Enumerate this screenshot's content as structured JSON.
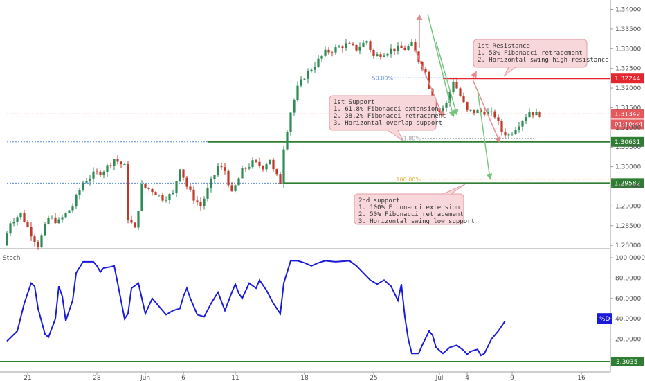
{
  "chart_data": [
    {
      "type": "candlestick",
      "y_axis_ticks": [
        "1.34000",
        "1.33500",
        "1.33000",
        "1.32500",
        "1.32000",
        "1.31500",
        "1.31000",
        "1.30500",
        "1.30000",
        "1.29500",
        "1.29000",
        "1.28500",
        "1.28000"
      ],
      "ylim": [
        1.2795,
        1.3415
      ],
      "x_axis_ticks": [
        {
          "label": "21",
          "bar": 6
        },
        {
          "label": "28",
          "bar": 26
        },
        {
          "label": "Jun",
          "bar": 40
        },
        {
          "label": "6",
          "bar": 51
        },
        {
          "label": "11",
          "bar": 66
        },
        {
          "label": "18",
          "bar": 86
        },
        {
          "label": "25",
          "bar": 106
        },
        {
          "label": "Jul",
          "bar": 125
        },
        {
          "label": "4",
          "bar": 133
        },
        {
          "label": "9",
          "bar": 146
        },
        {
          "label": "16",
          "bar": 166
        }
      ],
      "bar_count": 155,
      "price_path": [
        [
          0,
          1.28
        ],
        [
          2,
          1.286
        ],
        [
          5,
          1.288
        ],
        [
          8,
          1.283
        ],
        [
          10,
          1.28
        ],
        [
          13,
          1.287
        ],
        [
          16,
          1.286
        ],
        [
          20,
          1.29
        ],
        [
          23,
          1.296
        ],
        [
          26,
          1.298
        ],
        [
          29,
          1.299
        ],
        [
          32,
          1.302
        ],
        [
          35,
          1.3
        ],
        [
          36,
          1.287
        ],
        [
          38,
          1.284
        ],
        [
          40,
          1.295
        ],
        [
          43,
          1.294
        ],
        [
          46,
          1.292
        ],
        [
          49,
          1.293
        ],
        [
          51,
          1.3
        ],
        [
          53,
          1.295
        ],
        [
          55,
          1.292
        ],
        [
          57,
          1.29
        ],
        [
          60,
          1.296
        ],
        [
          62,
          1.3
        ],
        [
          64,
          1.299
        ],
        [
          66,
          1.293
        ],
        [
          69,
          1.299
        ],
        [
          72,
          1.301
        ],
        [
          75,
          1.3
        ],
        [
          77,
          1.302
        ],
        [
          78,
          1.299
        ],
        [
          80,
          1.296
        ],
        [
          81,
          1.305
        ],
        [
          83,
          1.314
        ],
        [
          85,
          1.32
        ],
        [
          87,
          1.323
        ],
        [
          90,
          1.326
        ],
        [
          93,
          1.329
        ],
        [
          96,
          1.33
        ],
        [
          99,
          1.331
        ],
        [
          102,
          1.33
        ],
        [
          105,
          1.332
        ],
        [
          107,
          1.328
        ],
        [
          110,
          1.329
        ],
        [
          113,
          1.33
        ],
        [
          116,
          1.33
        ],
        [
          118,
          1.331
        ],
        [
          120,
          1.327
        ],
        [
          122,
          1.324
        ],
        [
          124,
          1.317
        ],
        [
          126,
          1.314
        ],
        [
          128,
          1.316
        ],
        [
          130,
          1.322
        ],
        [
          132,
          1.318
        ],
        [
          134,
          1.314
        ],
        [
          136,
          1.314
        ],
        [
          139,
          1.314
        ],
        [
          142,
          1.313
        ],
        [
          144,
          1.309
        ],
        [
          146,
          1.308
        ],
        [
          148,
          1.31
        ],
        [
          150,
          1.312
        ],
        [
          152,
          1.314
        ],
        [
          154,
          1.3134
        ]
      ],
      "horizontal_levels": [
        {
          "price": 1.32244,
          "label": "1.32244",
          "color": "#e5262f",
          "style": "solid",
          "start_bar": 126
        },
        {
          "price": 1.31342,
          "label": "1.31342",
          "color": "#e5585c",
          "style": "dotted",
          "start_bar": 0
        },
        {
          "price": 1.30631,
          "label": "1.30631",
          "color": "#2e7d32",
          "style": "solid",
          "start_bar": 58
        },
        {
          "price": 1.29582,
          "label": "1.29582",
          "color": "#2e7d32",
          "style": "solid",
          "start_bar": 80
        },
        {
          "price": 1.30631,
          "label": "",
          "color": "#5b8bd8",
          "style": "dotted",
          "start_bar": 0,
          "end_bar": 58
        },
        {
          "price": 1.29582,
          "label": "",
          "color": "#5b8bd8",
          "style": "dotted",
          "start_bar": 0,
          "end_bar": 80
        }
      ],
      "countdown_label": "01:10:44",
      "fibonacci_levels": [
        {
          "label": "50.00%",
          "price": 1.3226,
          "color": "#5b8bd8"
        },
        {
          "label": "61.80%",
          "price": 1.3072,
          "color": "#9aa0a6"
        },
        {
          "label": "100.00%",
          "price": 1.2968,
          "color": "#e0b030"
        }
      ],
      "annotations": [
        {
          "name": "1st Resistance",
          "lines": [
            "1st Resistance",
            "1. 50% Fibonacci retracement",
            "2. Horizontal swing high resistance"
          ]
        },
        {
          "name": "1st Support",
          "lines": [
            "1st Support",
            "1. 61.8% Fibonacci extension",
            "2. 38.2% Fibonacci retracement",
            "3. Horizontal overlap support"
          ]
        },
        {
          "name": "2nd support",
          "lines": [
            "2nd support",
            "1. 100% Fibonacci extension",
            "2. 50% Fibonacci retracement",
            "3. Horizontal swing low support"
          ]
        }
      ]
    },
    {
      "type": "line",
      "title": "Stoch",
      "y_axis_ticks": [
        "100.0000",
        "80.0000",
        "60.0000",
        "40.0000",
        "20.0000"
      ],
      "ylim": [
        0,
        100
      ],
      "series": [
        {
          "name": "%D",
          "color": "#1a1ad8",
          "points": [
            [
              0,
              18
            ],
            [
              3,
              28
            ],
            [
              5,
              55
            ],
            [
              7,
              75
            ],
            [
              8,
              72
            ],
            [
              9,
              50
            ],
            [
              11,
              25
            ],
            [
              12,
              22
            ],
            [
              14,
              40
            ],
            [
              15,
              72
            ],
            [
              16,
              62
            ],
            [
              17,
              38
            ],
            [
              19,
              58
            ],
            [
              20,
              85
            ],
            [
              22,
              96
            ],
            [
              25,
              96
            ],
            [
              26,
              92
            ],
            [
              27,
              86
            ],
            [
              28,
              90
            ],
            [
              30,
              91
            ],
            [
              31,
              92
            ],
            [
              32,
              75
            ],
            [
              34,
              40
            ],
            [
              35,
              45
            ],
            [
              36,
              70
            ],
            [
              38,
              75
            ],
            [
              40,
              45
            ],
            [
              42,
              60
            ],
            [
              44,
              52
            ],
            [
              46,
              44
            ],
            [
              48,
              48
            ],
            [
              50,
              50
            ],
            [
              51,
              62
            ],
            [
              52,
              70
            ],
            [
              53,
              60
            ],
            [
              55,
              44
            ],
            [
              57,
              42
            ],
            [
              59,
              55
            ],
            [
              61,
              66
            ],
            [
              63,
              48
            ],
            [
              65,
              66
            ],
            [
              66,
              74
            ],
            [
              67,
              65
            ],
            [
              68,
              60
            ],
            [
              70,
              75
            ],
            [
              72,
              70
            ],
            [
              73,
              78
            ],
            [
              75,
              68
            ],
            [
              77,
              55
            ],
            [
              79,
              45
            ],
            [
              80,
              75
            ],
            [
              82,
              97
            ],
            [
              84,
              97
            ],
            [
              86,
              95
            ],
            [
              88,
              92
            ],
            [
              90,
              95
            ],
            [
              92,
              97
            ],
            [
              95,
              96
            ],
            [
              99,
              97
            ],
            [
              101,
              92
            ],
            [
              103,
              85
            ],
            [
              105,
              78
            ],
            [
              107,
              74
            ],
            [
              109,
              78
            ],
            [
              111,
              72
            ],
            [
              112,
              65
            ],
            [
              113,
              58
            ],
            [
              114,
              74
            ],
            [
              115,
              42
            ],
            [
              116,
              20
            ],
            [
              117,
              6
            ],
            [
              119,
              6
            ],
            [
              120,
              14
            ],
            [
              122,
              28
            ],
            [
              123,
              24
            ],
            [
              124,
              12
            ],
            [
              126,
              6
            ],
            [
              128,
              12
            ],
            [
              130,
              14
            ],
            [
              132,
              9
            ],
            [
              133,
              5
            ],
            [
              134,
              8
            ],
            [
              136,
              10
            ],
            [
              137,
              4
            ],
            [
              138,
              6
            ],
            [
              140,
              20
            ],
            [
              142,
              28
            ],
            [
              144,
              38
            ]
          ]
        }
      ],
      "series_label": "%D",
      "level": {
        "value": 3.3035,
        "label": "3.3035",
        "color": "#2e7d32"
      }
    }
  ],
  "colors": {
    "bull": "#2e8b57",
    "bear": "#c0392b",
    "resistance": "#e5262f",
    "support": "#2e7d32",
    "stoch_line": "#1a1ad8",
    "annotation_fill": "#f8d7da",
    "annotation_border": "#e39ea4"
  }
}
